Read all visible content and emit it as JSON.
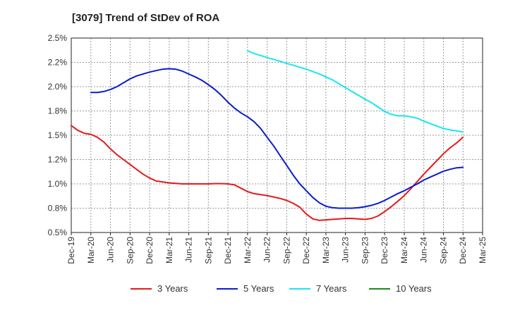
{
  "chart_data": {
    "type": "line",
    "title": "[3079]  Trend of StDev of ROA",
    "xlabel": "",
    "ylabel": "",
    "x_ticks": [
      "Dec-19",
      "Mar-20",
      "Jun-20",
      "Sep-20",
      "Dec-20",
      "Mar-21",
      "Jun-21",
      "Sep-21",
      "Dec-21",
      "Mar-22",
      "Jun-22",
      "Sep-22",
      "Dec-22",
      "Mar-23",
      "Jun-23",
      "Sep-23",
      "Dec-23",
      "Mar-24",
      "Jun-24",
      "Sep-24",
      "Dec-24",
      "Mar-25"
    ],
    "y_ticks": [
      "0.5%",
      "0.8%",
      "1.0%",
      "1.2%",
      "1.5%",
      "1.8%",
      "2.0%",
      "2.2%",
      "2.5%"
    ],
    "ylim": [
      0.5,
      2.5
    ],
    "grid": true,
    "legend_placement": "bottom",
    "series": [
      {
        "name": "3 Years",
        "color": "#e31a1c",
        "x": [
          "Dec-19",
          "Jan-20",
          "Feb-20",
          "Mar-20",
          "Apr-20",
          "May-20",
          "Jun-20",
          "Jul-20",
          "Aug-20",
          "Sep-20",
          "Oct-20",
          "Nov-20",
          "Dec-20",
          "Jan-21",
          "Feb-21",
          "Mar-21",
          "Apr-21",
          "May-21",
          "Jun-21",
          "Jul-21",
          "Aug-21",
          "Sep-21",
          "Oct-21",
          "Nov-21",
          "Dec-21",
          "Jan-22",
          "Feb-22",
          "Mar-22",
          "Apr-22",
          "May-22",
          "Jun-22",
          "Jul-22",
          "Aug-22",
          "Sep-22",
          "Oct-22",
          "Nov-22",
          "Dec-22",
          "Jan-23",
          "Feb-23",
          "Mar-23",
          "Apr-23",
          "May-23",
          "Jun-23",
          "Jul-23",
          "Aug-23",
          "Sep-23",
          "Oct-23",
          "Nov-23",
          "Dec-23",
          "Jan-24",
          "Feb-24",
          "Mar-24",
          "Apr-24",
          "May-24",
          "Jun-24",
          "Jul-24",
          "Aug-24",
          "Sep-24",
          "Oct-24",
          "Nov-24",
          "Dec-24"
        ],
        "values": [
          1.6,
          1.55,
          1.52,
          1.51,
          1.48,
          1.43,
          1.36,
          1.3,
          1.25,
          1.2,
          1.15,
          1.1,
          1.06,
          1.03,
          1.02,
          1.01,
          1.005,
          1.0,
          1.0,
          1.0,
          1.0,
          1.0,
          1.003,
          1.003,
          1.0,
          0.99,
          0.955,
          0.92,
          0.9,
          0.89,
          0.88,
          0.865,
          0.85,
          0.83,
          0.8,
          0.76,
          0.69,
          0.64,
          0.625,
          0.63,
          0.635,
          0.64,
          0.645,
          0.645,
          0.64,
          0.635,
          0.645,
          0.67,
          0.715,
          0.765,
          0.82,
          0.88,
          0.95,
          1.025,
          1.1,
          1.17,
          1.24,
          1.31,
          1.37,
          1.42,
          1.48
        ]
      },
      {
        "name": "5 Years",
        "color": "#0a1ccf",
        "x": [
          "Mar-20",
          "Apr-20",
          "May-20",
          "Jun-20",
          "Jul-20",
          "Aug-20",
          "Sep-20",
          "Oct-20",
          "Nov-20",
          "Dec-20",
          "Jan-21",
          "Feb-21",
          "Mar-21",
          "Apr-21",
          "May-21",
          "Jun-21",
          "Jul-21",
          "Aug-21",
          "Sep-21",
          "Oct-21",
          "Nov-21",
          "Dec-21",
          "Jan-22",
          "Feb-22",
          "Mar-22",
          "Apr-22",
          "May-22",
          "Jun-22",
          "Jul-22",
          "Aug-22",
          "Sep-22",
          "Oct-22",
          "Nov-22",
          "Dec-22",
          "Jan-23",
          "Feb-23",
          "Mar-23",
          "Apr-23",
          "May-23",
          "Jun-23",
          "Jul-23",
          "Aug-23",
          "Sep-23",
          "Oct-23",
          "Nov-23",
          "Dec-23",
          "Jan-24",
          "Feb-24",
          "Mar-24",
          "Apr-24",
          "May-24",
          "Jun-24",
          "Jul-24",
          "Aug-24",
          "Sep-24",
          "Oct-24",
          "Nov-24",
          "Dec-24"
        ],
        "values": [
          1.94,
          1.94,
          1.95,
          1.97,
          2.0,
          2.04,
          2.08,
          2.11,
          2.13,
          2.15,
          2.165,
          2.18,
          2.185,
          2.18,
          2.16,
          2.13,
          2.1,
          2.065,
          2.02,
          1.97,
          1.91,
          1.84,
          1.78,
          1.73,
          1.69,
          1.64,
          1.57,
          1.48,
          1.39,
          1.29,
          1.19,
          1.09,
          1.0,
          0.93,
          0.86,
          0.805,
          0.77,
          0.755,
          0.75,
          0.75,
          0.75,
          0.755,
          0.765,
          0.78,
          0.8,
          0.83,
          0.865,
          0.9,
          0.93,
          0.965,
          1.0,
          1.04,
          1.07,
          1.1,
          1.13,
          1.15,
          1.165,
          1.17
        ]
      },
      {
        "name": "7 Years",
        "color": "#18e7ef",
        "x": [
          "Mar-22",
          "Apr-22",
          "May-22",
          "Jun-22",
          "Jul-22",
          "Aug-22",
          "Sep-22",
          "Oct-22",
          "Nov-22",
          "Dec-22",
          "Jan-23",
          "Feb-23",
          "Mar-23",
          "Apr-23",
          "May-23",
          "Jun-23",
          "Jul-23",
          "Aug-23",
          "Sep-23",
          "Oct-23",
          "Nov-23",
          "Dec-23",
          "Jan-24",
          "Feb-24",
          "Mar-24",
          "Apr-24",
          "May-24",
          "Jun-24",
          "Jul-24",
          "Aug-24",
          "Sep-24",
          "Oct-24",
          "Nov-24",
          "Dec-24"
        ],
        "values": [
          2.37,
          2.34,
          2.32,
          2.3,
          2.28,
          2.26,
          2.24,
          2.22,
          2.2,
          2.18,
          2.155,
          2.13,
          2.1,
          2.07,
          2.03,
          1.99,
          1.95,
          1.91,
          1.87,
          1.835,
          1.79,
          1.745,
          1.715,
          1.7,
          1.7,
          1.69,
          1.675,
          1.645,
          1.62,
          1.595,
          1.57,
          1.555,
          1.545,
          1.535
        ]
      },
      {
        "name": "10 Years",
        "color": "#1a8a1a",
        "x": [],
        "values": []
      }
    ]
  }
}
